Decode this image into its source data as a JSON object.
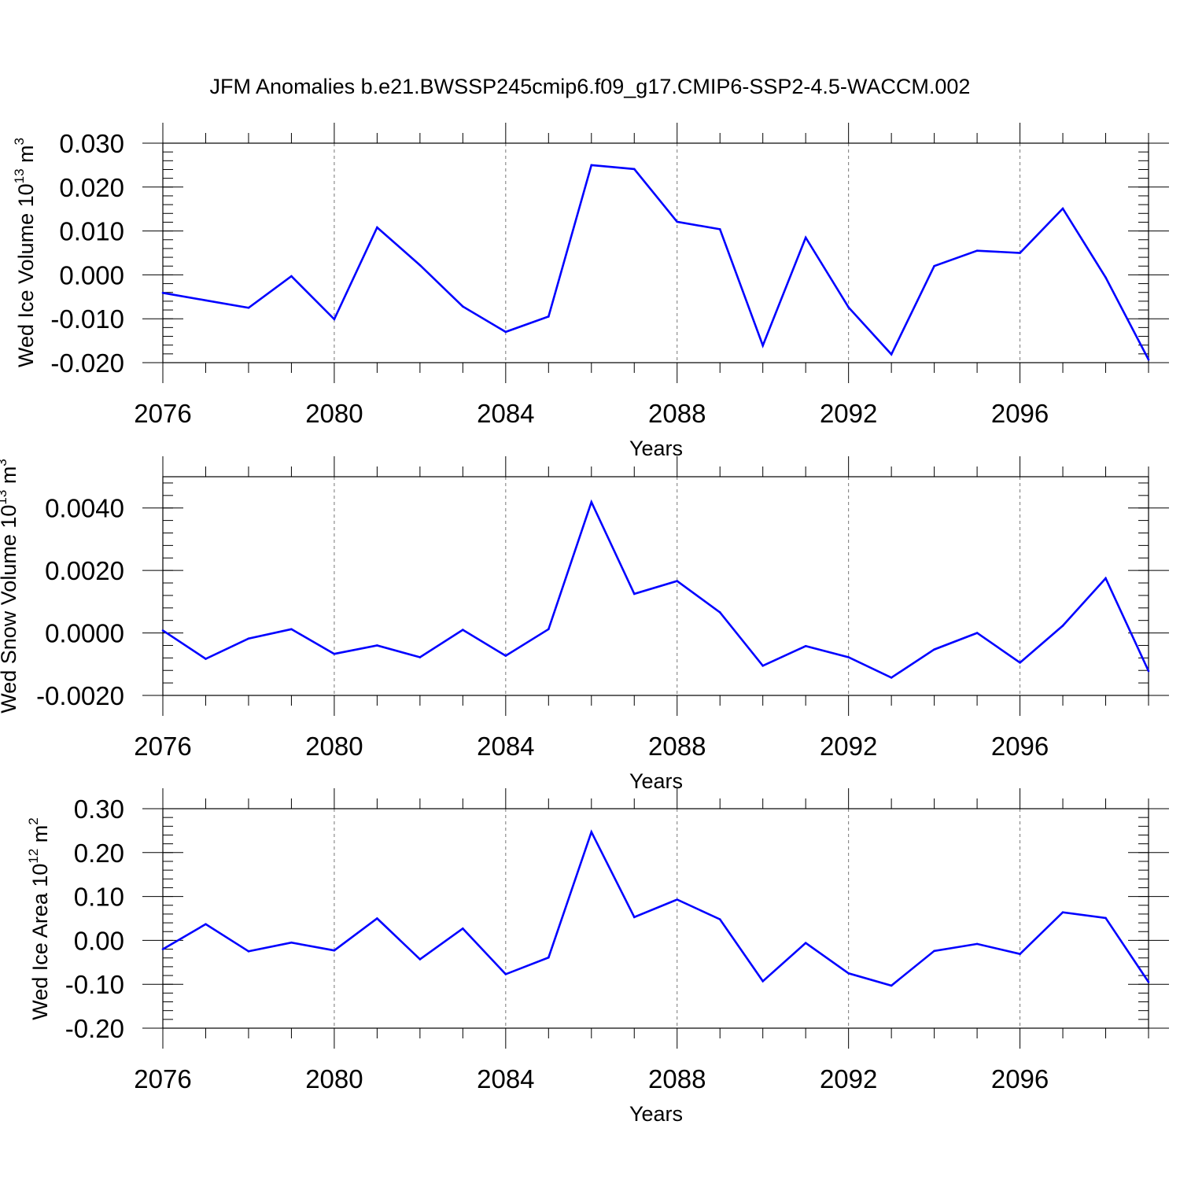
{
  "title": "JFM Anomalies b.e21.BWSSP245cmip6.f09_g17.CMIP6-SSP2-4.5-WACCM.002",
  "colors": {
    "line": "#0000ff",
    "axis": "#000000",
    "grid": "#777777"
  },
  "chart_data": [
    {
      "type": "line",
      "ylabel": {
        "main": "Wed Ice Volume 10",
        "exp": "13",
        "unit": " m",
        "unit_exp": "3"
      },
      "xlabel": "Years",
      "xlim": [
        2076,
        2099
      ],
      "ylim": [
        -0.02,
        0.03
      ],
      "yticks": [
        -0.02,
        -0.01,
        0.0,
        0.01,
        0.02,
        0.03
      ],
      "ytick_labels": [
        "-0.020",
        "-0.010",
        "0.000",
        "0.010",
        "0.020",
        "0.030"
      ],
      "xticks": [
        2076,
        2080,
        2084,
        2088,
        2092,
        2096
      ],
      "xtick_labels": [
        "2076",
        "2080",
        "2084",
        "2088",
        "2092",
        "2096"
      ],
      "grid_x": [
        2080,
        2084,
        2088,
        2092,
        2096
      ],
      "x": [
        2076,
        2077,
        2078,
        2079,
        2080,
        2081,
        2082,
        2083,
        2084,
        2085,
        2086,
        2087,
        2088,
        2089,
        2090,
        2091,
        2092,
        2093,
        2094,
        2095,
        2096,
        2097,
        2098,
        2099
      ],
      "values": [
        -0.0041,
        -0.0058,
        -0.0075,
        -0.0003,
        -0.0101,
        0.0108,
        0.0022,
        -0.0072,
        -0.013,
        -0.0095,
        0.025,
        0.0241,
        0.0121,
        0.0104,
        -0.0161,
        0.0085,
        -0.0074,
        -0.0181,
        0.002,
        0.0055,
        0.005,
        0.0151,
        -0.0006,
        -0.0193
      ]
    },
    {
      "type": "line",
      "ylabel": {
        "main": "Wed Snow Volume 10",
        "exp": "13",
        "unit": " m",
        "unit_exp": "3"
      },
      "xlabel": "Years",
      "xlim": [
        2076,
        2099
      ],
      "ylim": [
        -0.002,
        0.005
      ],
      "yticks": [
        -0.002,
        0.0,
        0.002,
        0.004
      ],
      "ytick_labels": [
        "-0.0020",
        "0.0000",
        "0.0020",
        "0.0040"
      ],
      "xticks": [
        2076,
        2080,
        2084,
        2088,
        2092,
        2096
      ],
      "xtick_labels": [
        "2076",
        "2080",
        "2084",
        "2088",
        "2092",
        "2096"
      ],
      "grid_x": [
        2080,
        2084,
        2088,
        2092,
        2096
      ],
      "x": [
        2076,
        2077,
        2078,
        2079,
        2080,
        2081,
        2082,
        2083,
        2084,
        2085,
        2086,
        2087,
        2088,
        2089,
        2090,
        2091,
        2092,
        2093,
        2094,
        2095,
        2096,
        2097,
        2098,
        2099
      ],
      "values": [
        8e-05,
        -0.00083,
        -0.00018,
        0.00012,
        -0.00067,
        -0.0004,
        -0.00078,
        0.0001,
        -0.00073,
        0.00012,
        0.00419,
        0.00125,
        0.00166,
        0.00066,
        -0.00105,
        -0.00042,
        -0.00078,
        -0.00143,
        -0.00053,
        0.0,
        -0.00095,
        0.00023,
        0.00175,
        -0.00122
      ]
    },
    {
      "type": "line",
      "ylabel": {
        "main": "Wed Ice Area 10",
        "exp": "12",
        "unit": " m",
        "unit_exp": "2"
      },
      "xlabel": "Years",
      "xlim": [
        2076,
        2099
      ],
      "ylim": [
        -0.2,
        0.3
      ],
      "yticks": [
        -0.2,
        -0.1,
        0.0,
        0.1,
        0.2,
        0.3
      ],
      "ytick_labels": [
        "-0.20",
        "-0.10",
        "0.00",
        "0.10",
        "0.20",
        "0.30"
      ],
      "xticks": [
        2076,
        2080,
        2084,
        2088,
        2092,
        2096
      ],
      "xtick_labels": [
        "2076",
        "2080",
        "2084",
        "2088",
        "2092",
        "2096"
      ],
      "grid_x": [
        2080,
        2084,
        2088,
        2092,
        2096
      ],
      "x": [
        2076,
        2077,
        2078,
        2079,
        2080,
        2081,
        2082,
        2083,
        2084,
        2085,
        2086,
        2087,
        2088,
        2089,
        2090,
        2091,
        2092,
        2093,
        2094,
        2095,
        2096,
        2097,
        2098,
        2099
      ],
      "values": [
        -0.02,
        0.037,
        -0.025,
        -0.005,
        -0.023,
        0.05,
        -0.043,
        0.027,
        -0.077,
        -0.039,
        0.247,
        0.053,
        0.093,
        0.048,
        -0.093,
        -0.006,
        -0.075,
        -0.103,
        -0.024,
        -0.008,
        -0.031,
        0.064,
        0.051,
        -0.095
      ]
    }
  ]
}
